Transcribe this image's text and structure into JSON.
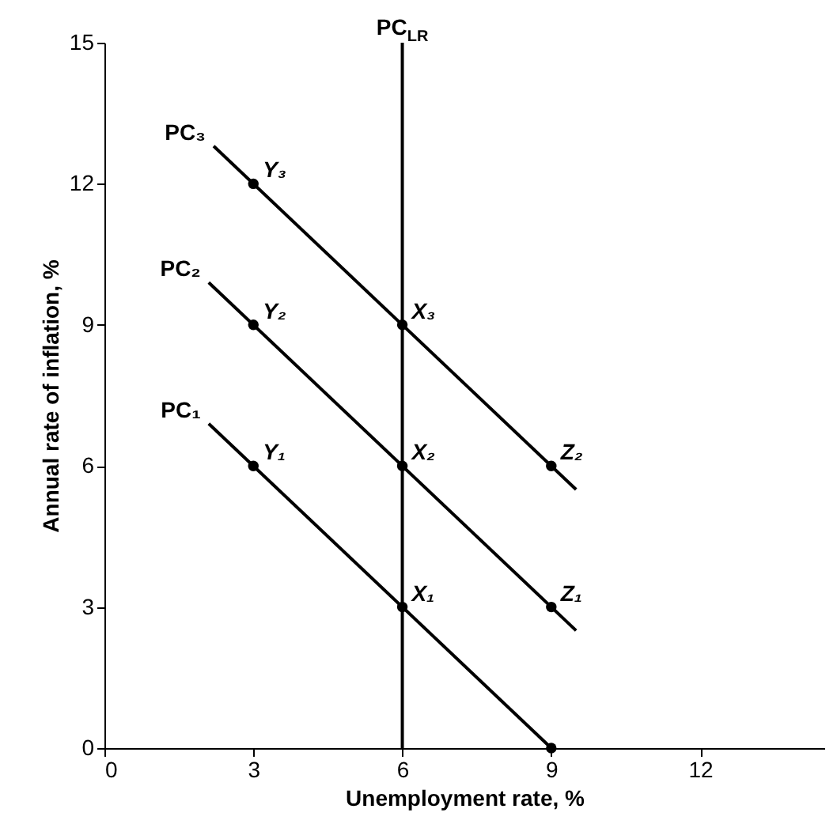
{
  "chart_data": {
    "type": "line",
    "xlabel": "Unemployment rate, %",
    "ylabel": "Annual rate of inflation, %",
    "xlim": [
      0,
      14.5
    ],
    "ylim": [
      0,
      15
    ],
    "xticks": [
      0,
      3,
      6,
      9,
      12
    ],
    "yticks": [
      0,
      3,
      6,
      9,
      12,
      15
    ],
    "series": [
      {
        "name": "PC₁",
        "color": "#000000",
        "x": [
          2.1,
          9
        ],
        "values": [
          6.9,
          0
        ]
      },
      {
        "name": "PC₂",
        "color": "#000000",
        "x": [
          2.1,
          9.5
        ],
        "values": [
          9.9,
          2.5
        ]
      },
      {
        "name": "PC₃",
        "color": "#000000",
        "x": [
          2.2,
          9.5
        ],
        "values": [
          12.8,
          5.5
        ]
      },
      {
        "type": "scatter",
        "marker": "circle",
        "color": "#000000",
        "x": [
          3,
          6,
          9,
          3,
          6,
          9,
          3,
          6,
          9
        ],
        "values": [
          6,
          3,
          0,
          9,
          6,
          3,
          12,
          9,
          6
        ]
      }
    ],
    "ref_lines": [
      {
        "axis": "x",
        "value": 6,
        "label": "PC$_{LR}$",
        "color": "#000000"
      }
    ],
    "annotations": [
      {
        "text": "Y₁",
        "x": 3,
        "y": 6
      },
      {
        "text": "X₁",
        "x": 6,
        "y": 3
      },
      {
        "text": "Y₂",
        "x": 3,
        "y": 9
      },
      {
        "text": "X₂",
        "x": 6,
        "y": 6
      },
      {
        "text": "Z₁",
        "x": 9,
        "y": 3
      },
      {
        "text": "Y₃",
        "x": 3,
        "y": 12
      },
      {
        "text": "X₃",
        "x": 6,
        "y": 9
      },
      {
        "text": "Z₂",
        "x": 9,
        "y": 6
      }
    ]
  }
}
